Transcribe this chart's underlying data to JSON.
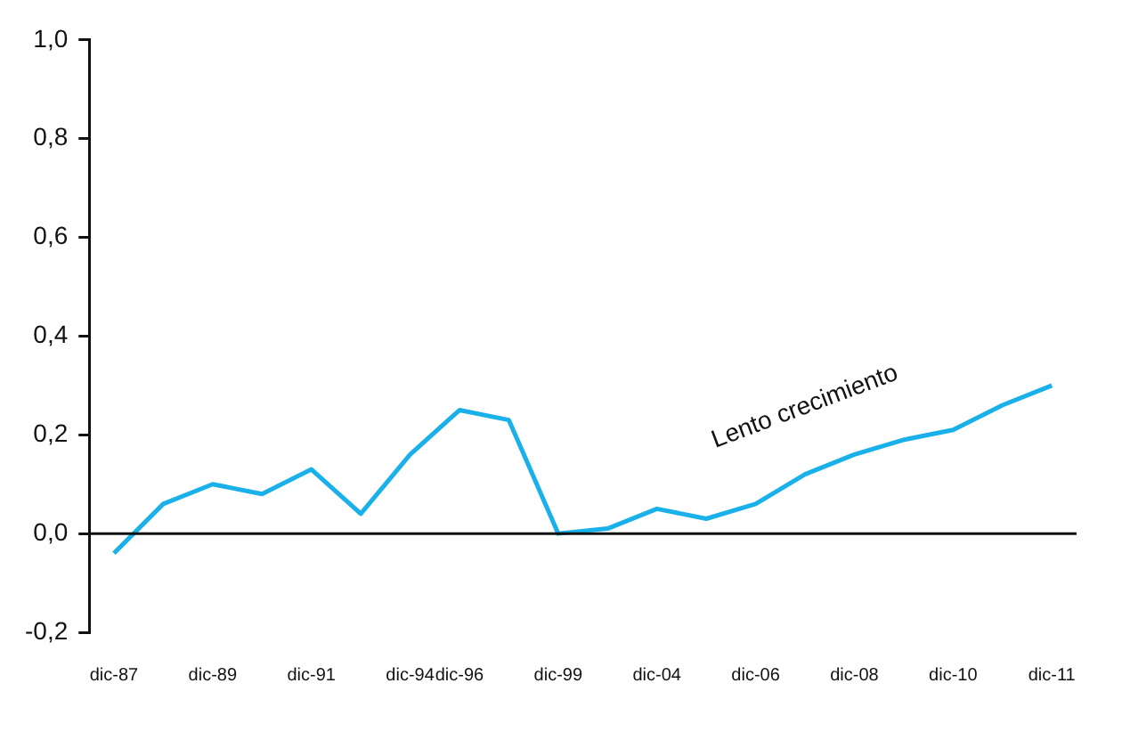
{
  "chart_data": {
    "type": "line",
    "categories": [
      "dic-87",
      null,
      "dic-89",
      null,
      "dic-91",
      null,
      "dic-94",
      "dic-96",
      null,
      "dic-99",
      null,
      "dic-04",
      null,
      "dic-06",
      null,
      "dic-08",
      null,
      "dic-10",
      null,
      "dic-11"
    ],
    "series": [
      {
        "color": "#1ab0ea",
        "values": [
          -0.04,
          0.06,
          0.1,
          0.08,
          0.13,
          0.04,
          0.16,
          0.25,
          0.23,
          0.0,
          0.01,
          0.05,
          0.03,
          0.06,
          0.12,
          0.16,
          0.19,
          0.21,
          0.26,
          0.3
        ]
      }
    ],
    "ylim": [
      -0.2,
      1.0
    ],
    "yticks": [
      {
        "value": -0.2,
        "label": "-0,2"
      },
      {
        "value": 0,
        "label": "0,0"
      },
      {
        "value": 0.2,
        "label": "0,2"
      },
      {
        "value": 0.4,
        "label": "0,4"
      },
      {
        "value": 0.6,
        "label": "0,6"
      },
      {
        "value": 0.8,
        "label": "0,8"
      },
      {
        "value": 1.0,
        "label": "1,0"
      }
    ],
    "annotations": [
      "Lento crecimiento"
    ],
    "ref_lines": [
      {
        "axis": "y",
        "value": 0,
        "color": "#111111",
        "line_style": "solid"
      }
    ],
    "grid": false,
    "legend": false,
    "marker": "none",
    "line_style": "solid"
  }
}
